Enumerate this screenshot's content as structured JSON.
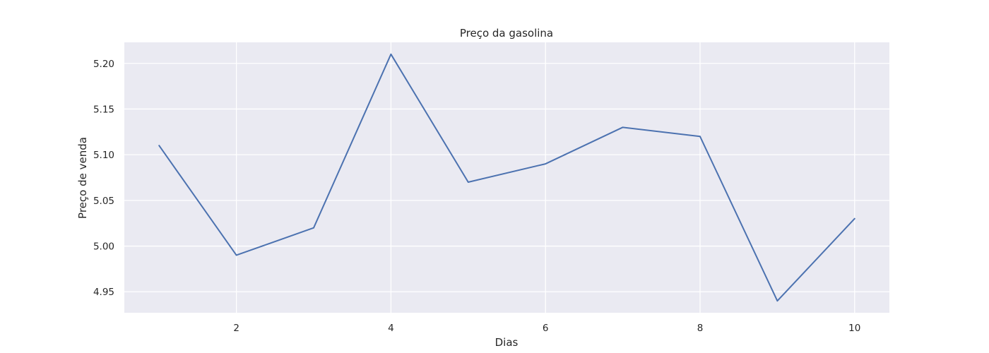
{
  "chart_data": {
    "type": "line",
    "title": "Preço da gasolina",
    "xlabel": "Dias",
    "ylabel": "Preço de venda",
    "x": [
      1,
      2,
      3,
      4,
      5,
      6,
      7,
      8,
      9,
      10
    ],
    "series": [
      {
        "values": [
          5.11,
          4.99,
          5.02,
          5.21,
          5.07,
          5.09,
          5.13,
          5.12,
          4.94,
          5.03
        ],
        "color": "#4c72b0"
      }
    ],
    "xlim": [
      0.55,
      10.45
    ],
    "ylim": [
      4.927,
      5.223
    ],
    "xticks": [
      2,
      4,
      6,
      8,
      10
    ],
    "xtick_labels": [
      "2",
      "4",
      "6",
      "8",
      "10"
    ],
    "yticks": [
      4.95,
      5.0,
      5.05,
      5.1,
      5.15,
      5.2
    ],
    "ytick_labels": [
      "4.95",
      "5.00",
      "5.05",
      "5.10",
      "5.15",
      "5.20"
    ],
    "grid": true,
    "background_color": "#eaeaf2",
    "grid_color": "#ffffff",
    "text_color": "#262626"
  }
}
